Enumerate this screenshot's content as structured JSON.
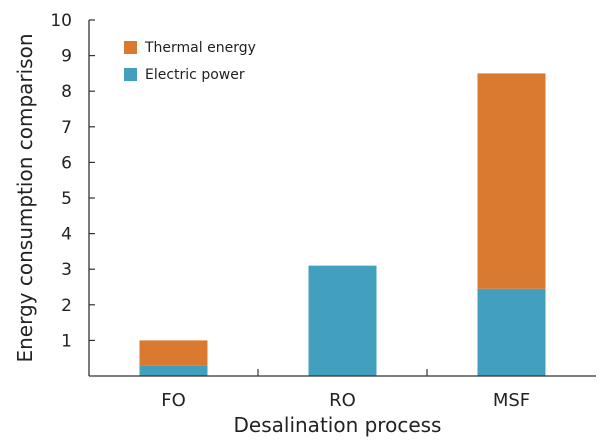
{
  "chart_data": {
    "type": "bar",
    "stacked": true,
    "title": "",
    "xlabel": "Desalination process",
    "ylabel": "Energy consumption comparison",
    "categories": [
      "FO",
      "RO",
      "MSF"
    ],
    "series": [
      {
        "name": "Electric power",
        "values": [
          0.3,
          3.1,
          2.45
        ],
        "color": "#429fbe"
      },
      {
        "name": "Thermal energy",
        "values": [
          0.7,
          0.0,
          6.05
        ],
        "color": "#d97a30"
      }
    ],
    "ylim": [
      0,
      10
    ],
    "yticks": [
      1,
      2,
      3,
      4,
      5,
      6,
      7,
      8,
      9,
      10
    ],
    "grid": false,
    "legend_position": "top-left"
  }
}
